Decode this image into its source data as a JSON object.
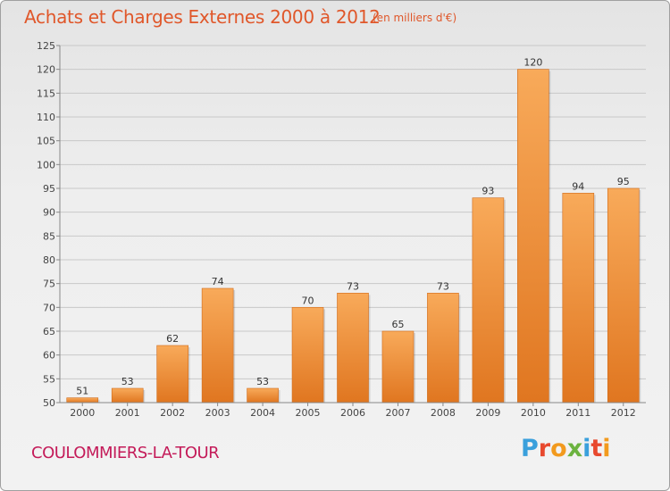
{
  "header": {
    "title": "Achats et Charges Externes 2000 à 2012",
    "unit": "(en milliers d'€)"
  },
  "footer": {
    "town": "COULOMMIERS-LA-TOUR",
    "logo": "Proxiti"
  },
  "colors": {
    "title": "#e0572a",
    "town": "#c41b59",
    "bar_light": "#f8aa5a",
    "bar_dark": "#e07620",
    "grid": "#c8c8c8",
    "logo_letters": [
      "#3aa0dc",
      "#e8492e",
      "#f29a1e",
      "#6cb33f",
      "#3aa0dc",
      "#e8492e",
      "#f29a1e"
    ]
  },
  "chart_data": {
    "type": "bar",
    "title": "Achats et Charges Externes 2000 à 2012",
    "subtitle": "(en milliers d'€)",
    "xlabel": "",
    "ylabel": "",
    "categories": [
      "2000",
      "2001",
      "2002",
      "2003",
      "2004",
      "2005",
      "2006",
      "2007",
      "2008",
      "2009",
      "2010",
      "2011",
      "2012"
    ],
    "values": [
      51,
      53,
      62,
      74,
      53,
      70,
      73,
      65,
      73,
      93,
      120,
      94,
      95
    ],
    "ylim": [
      50,
      125
    ],
    "yticks": [
      50,
      55,
      60,
      65,
      70,
      75,
      80,
      85,
      90,
      95,
      100,
      105,
      110,
      115,
      120,
      125
    ],
    "grid": true
  }
}
